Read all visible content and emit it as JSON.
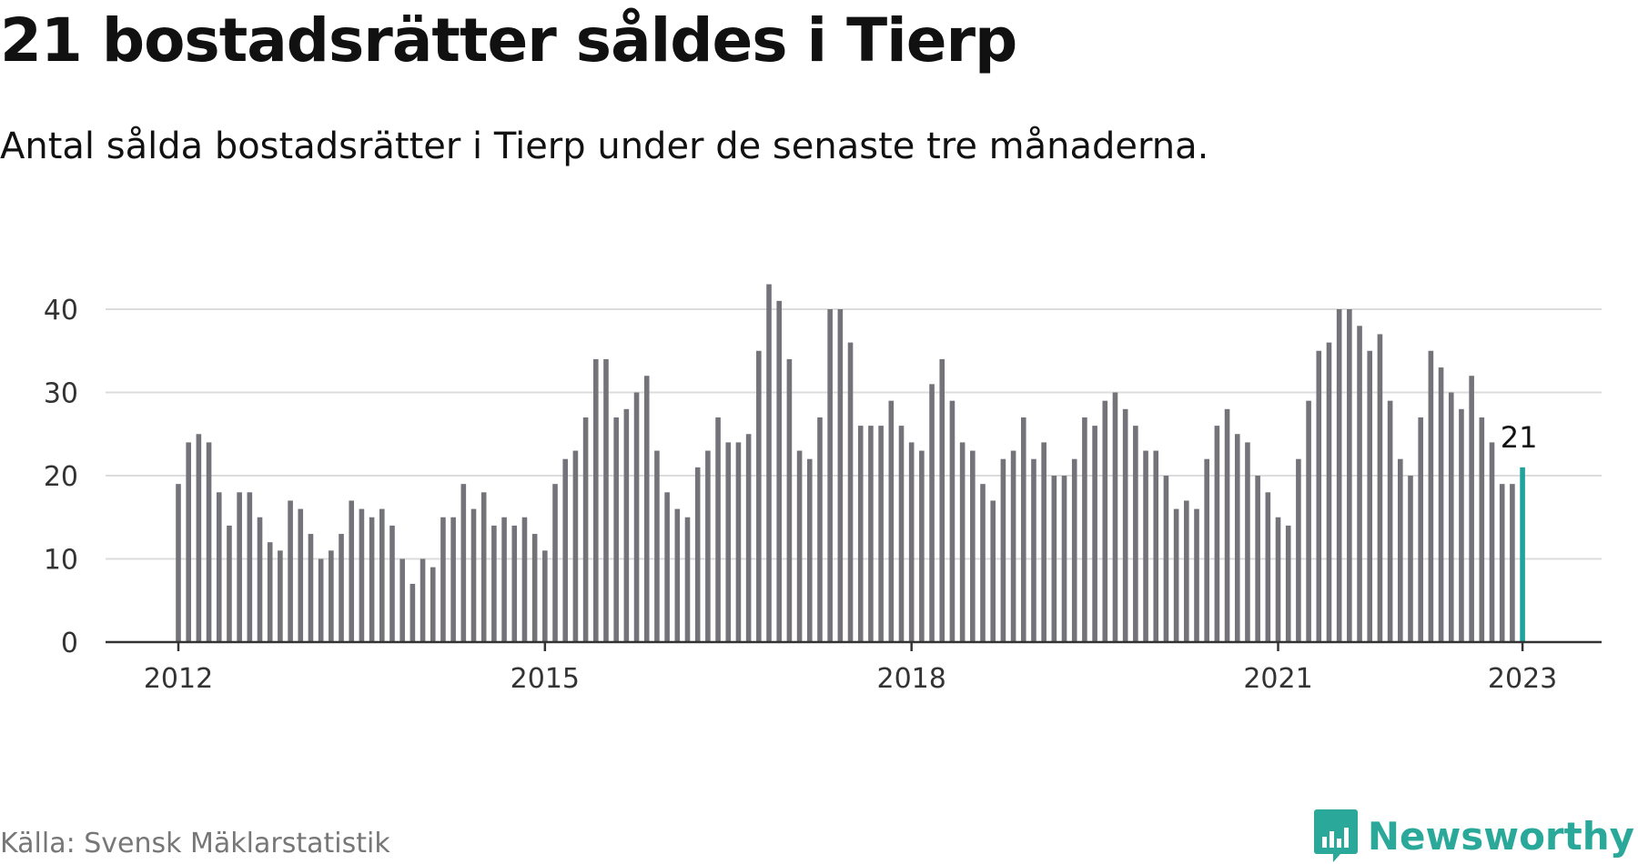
{
  "header": {
    "title": "21 bostadsrätter såldes i Tierp",
    "subtitle": "Antal sålda bostadsrätter i Tierp under de senaste tre månaderna."
  },
  "footer": {
    "source": "Källa: Svensk Mäklarstatistik",
    "brand": "Newsworthy"
  },
  "colors": {
    "bar": "#74737a",
    "highlight": "#1fa39a",
    "grid": "#dcdcdc",
    "axis": "#333333",
    "brand": "#2aa89a"
  },
  "icons": {
    "brand_logo": "bar-chart-speech-bubble-icon"
  },
  "chart_data": {
    "type": "bar",
    "x_start": "2012-01",
    "x_step": "month",
    "x_tick_labels": [
      "2012",
      "2015",
      "2018",
      "2021",
      "2023"
    ],
    "y_ticks": [
      0,
      10,
      20,
      30,
      40
    ],
    "ylim": [
      0,
      43
    ],
    "grid": true,
    "end_label": "21",
    "values": [
      19,
      24,
      25,
      24,
      18,
      14,
      18,
      18,
      15,
      12,
      11,
      17,
      16,
      13,
      10,
      11,
      13,
      17,
      16,
      15,
      16,
      14,
      10,
      7,
      10,
      9,
      15,
      15,
      19,
      16,
      18,
      14,
      15,
      14,
      15,
      13,
      11,
      19,
      22,
      23,
      27,
      34,
      34,
      27,
      28,
      30,
      32,
      23,
      18,
      16,
      15,
      21,
      23,
      27,
      24,
      24,
      25,
      35,
      43,
      41,
      34,
      23,
      22,
      27,
      40,
      40,
      36,
      26,
      26,
      26,
      29,
      26,
      24,
      23,
      31,
      34,
      29,
      24,
      23,
      19,
      17,
      22,
      23,
      27,
      22,
      24,
      20,
      20,
      22,
      27,
      26,
      29,
      30,
      28,
      26,
      23,
      23,
      20,
      16,
      17,
      16,
      22,
      26,
      28,
      25,
      24,
      20,
      18,
      15,
      14,
      22,
      29,
      35,
      36,
      40,
      40,
      38,
      35,
      37,
      29,
      22,
      20,
      27,
      35,
      33,
      30,
      28,
      32,
      27,
      24,
      19,
      19,
      21
    ]
  }
}
